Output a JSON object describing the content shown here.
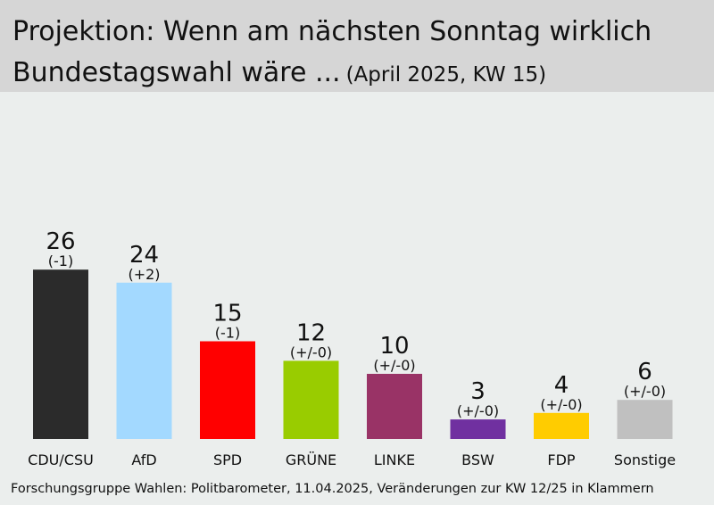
{
  "header": {
    "title_line1": "Projektion: Wenn am nächsten Sonntag wirklich",
    "title_line2": "Bundestagswahl wäre ...",
    "subtitle": "(April 2025, KW 15)"
  },
  "chart_data": {
    "type": "bar",
    "title": "Projektion: Wenn am nächsten Sonntag wirklich Bundestagswahl wäre ...",
    "subtitle": "(April 2025, KW 15)",
    "categories": [
      "CDU/CSU",
      "AfD",
      "SPD",
      "GRÜNE",
      "LINKE",
      "BSW",
      "FDP",
      "Sonstige"
    ],
    "values": [
      26,
      24,
      15,
      12,
      10,
      3,
      4,
      6
    ],
    "changes": [
      "(-1)",
      "(+2)",
      "(-1)",
      "(+/-0)",
      "(+/-0)",
      "(+/-0)",
      "(+/-0)",
      "(+/-0)"
    ],
    "colors": [
      "#2b2b2b",
      "#a3d9ff",
      "#ff0000",
      "#99cc00",
      "#993366",
      "#7030a0",
      "#ffcc00",
      "#c0c0c0"
    ],
    "xlabel": "",
    "ylabel": "",
    "ylim": [
      0,
      26
    ],
    "grid": false,
    "legend": "none"
  },
  "footer": {
    "source": "Forschungsgruppe Wahlen: Politbarometer, 11.04.2025, Veränderungen zur KW 12/25 in Klammern"
  }
}
